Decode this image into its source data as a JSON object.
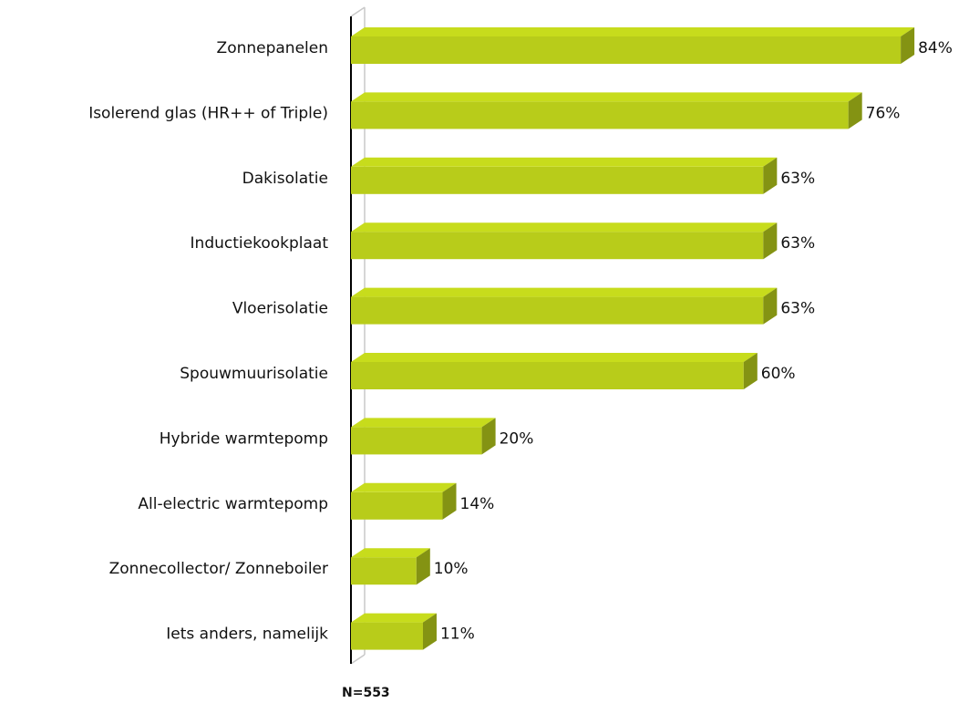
{
  "chart_data": {
    "type": "bar",
    "orientation": "horizontal",
    "categories": [
      "Zonnepanelen",
      "Isolerend glas (HR++ of Triple)",
      "Dakisolatie",
      "Inductiekookplaat",
      "Vloerisolatie",
      "Spouwmuurisolatie",
      "Hybride warmtepomp",
      "All-electric warmtepomp",
      "Zonnecollector/ Zonneboiler",
      "Iets anders, namelijk"
    ],
    "values": [
      84,
      76,
      63,
      63,
      63,
      60,
      20,
      14,
      10,
      11
    ],
    "value_labels": [
      "84%",
      "76%",
      "63%",
      "63%",
      "63%",
      "60%",
      "20%",
      "14%",
      "10%",
      "11%"
    ],
    "color": "#b8cc1a",
    "note": "N=553"
  }
}
